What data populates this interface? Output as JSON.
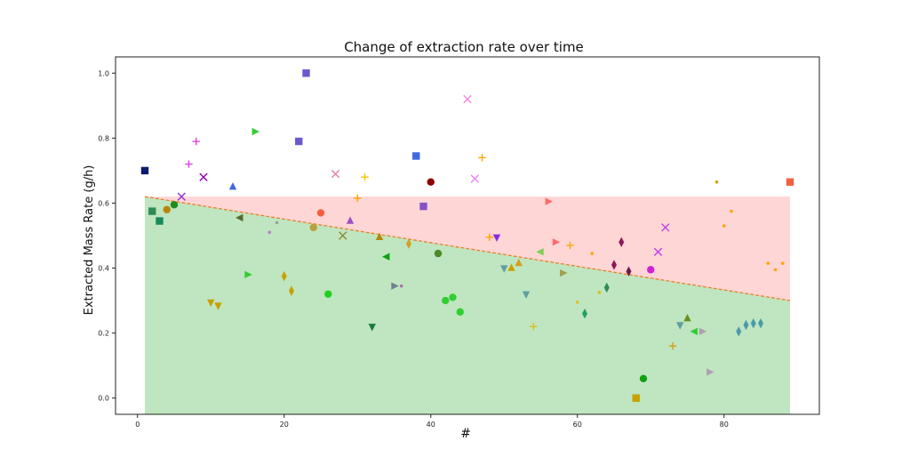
{
  "chart_data": {
    "type": "scatter",
    "title": "Change of extraction rate over time",
    "xlabel": "#",
    "ylabel": "Extracted Mass Rate (g/h)",
    "xlim": [
      -3,
      93
    ],
    "ylim": [
      -0.05,
      1.05
    ],
    "xticks": [
      0,
      20,
      40,
      60,
      80
    ],
    "yticks": [
      0.0,
      0.2,
      0.4,
      0.6,
      0.8,
      1.0
    ],
    "xtick_labels": [
      "0",
      "20",
      "40",
      "60",
      "80"
    ],
    "ytick_labels": [
      "0.0",
      "0.2",
      "0.4",
      "0.6",
      "0.8",
      "1.0"
    ],
    "grid": false,
    "legend": "none",
    "threshold_line": {
      "x": [
        1,
        89
      ],
      "y": [
        0.62,
        0.3
      ],
      "color": "#e8812a",
      "style": "dashed"
    },
    "regions": {
      "upper_band_top": 0.62,
      "upper_color": "#ffd6d6",
      "lower_color": "#bfe6c0"
    },
    "points": [
      {
        "x": 1,
        "y": 0.7,
        "marker": "square",
        "color": "#0b1a6e"
      },
      {
        "x": 2,
        "y": 0.575,
        "marker": "square",
        "color": "#2e8b57"
      },
      {
        "x": 3,
        "y": 0.545,
        "marker": "square",
        "color": "#178a5c"
      },
      {
        "x": 4,
        "y": 0.58,
        "marker": "circle",
        "color": "#b8860b"
      },
      {
        "x": 5,
        "y": 0.595,
        "marker": "circle",
        "color": "#228b22"
      },
      {
        "x": 6,
        "y": 0.62,
        "marker": "x",
        "color": "#9b30d0"
      },
      {
        "x": 7,
        "y": 0.72,
        "marker": "plus",
        "color": "#e040e0"
      },
      {
        "x": 8,
        "y": 0.79,
        "marker": "plus",
        "color": "#e040e0"
      },
      {
        "x": 9,
        "y": 0.68,
        "marker": "x",
        "color": "#8b00b0"
      },
      {
        "x": 10,
        "y": 0.295,
        "marker": "triangle-down",
        "color": "#c8a000"
      },
      {
        "x": 11,
        "y": 0.285,
        "marker": "triangle-down",
        "color": "#c8a000"
      },
      {
        "x": 13,
        "y": 0.65,
        "marker": "triangle-up",
        "color": "#4169e1"
      },
      {
        "x": 14,
        "y": 0.555,
        "marker": "triangle-left",
        "color": "#556b2f"
      },
      {
        "x": 15,
        "y": 0.38,
        "marker": "triangle-right",
        "color": "#32cd32"
      },
      {
        "x": 16,
        "y": 0.82,
        "marker": "triangle-right",
        "color": "#32cd32"
      },
      {
        "x": 18,
        "y": 0.51,
        "marker": "dot",
        "color": "#c080c0"
      },
      {
        "x": 19,
        "y": 0.54,
        "marker": "dot",
        "color": "#a0a0a0"
      },
      {
        "x": 20,
        "y": 0.375,
        "marker": "diamond",
        "color": "#c8a000"
      },
      {
        "x": 21,
        "y": 0.33,
        "marker": "diamond",
        "color": "#c8a000"
      },
      {
        "x": 22,
        "y": 0.79,
        "marker": "square",
        "color": "#6a5acd"
      },
      {
        "x": 23,
        "y": 1.0,
        "marker": "square",
        "color": "#6a5acd"
      },
      {
        "x": 24,
        "y": 0.525,
        "marker": "circle",
        "color": "#b8a040"
      },
      {
        "x": 25,
        "y": 0.57,
        "marker": "circle",
        "color": "#f06040"
      },
      {
        "x": 26,
        "y": 0.32,
        "marker": "circle",
        "color": "#20d020"
      },
      {
        "x": 27,
        "y": 0.69,
        "marker": "x",
        "color": "#e080a0"
      },
      {
        "x": 28,
        "y": 0.5,
        "marker": "x",
        "color": "#8b8b3a"
      },
      {
        "x": 29,
        "y": 0.545,
        "marker": "triangle-up",
        "color": "#9b50c8"
      },
      {
        "x": 30,
        "y": 0.615,
        "marker": "plus",
        "color": "#ffa500"
      },
      {
        "x": 31,
        "y": 0.68,
        "marker": "plus",
        "color": "#ffc000"
      },
      {
        "x": 32,
        "y": 0.22,
        "marker": "triangle-down",
        "color": "#1a7a3a"
      },
      {
        "x": 33,
        "y": 0.495,
        "marker": "triangle-up",
        "color": "#b8860b"
      },
      {
        "x": 34,
        "y": 0.435,
        "marker": "triangle-left",
        "color": "#10a010"
      },
      {
        "x": 35,
        "y": 0.345,
        "marker": "triangle-right",
        "color": "#708090"
      },
      {
        "x": 36,
        "y": 0.345,
        "marker": "dot",
        "color": "#b070b0"
      },
      {
        "x": 37,
        "y": 0.475,
        "marker": "diamond",
        "color": "#d4a020"
      },
      {
        "x": 38,
        "y": 0.745,
        "marker": "square",
        "color": "#4169e1"
      },
      {
        "x": 39,
        "y": 0.59,
        "marker": "square",
        "color": "#8a50c8"
      },
      {
        "x": 40,
        "y": 0.665,
        "marker": "circle",
        "color": "#8b0000"
      },
      {
        "x": 41,
        "y": 0.445,
        "marker": "circle",
        "color": "#4a8a2a"
      },
      {
        "x": 42,
        "y": 0.3,
        "marker": "circle",
        "color": "#32cd32"
      },
      {
        "x": 43,
        "y": 0.31,
        "marker": "circle",
        "color": "#32cd32"
      },
      {
        "x": 44,
        "y": 0.265,
        "marker": "circle",
        "color": "#32cd32"
      },
      {
        "x": 45,
        "y": 0.92,
        "marker": "x",
        "color": "#ee82ee"
      },
      {
        "x": 46,
        "y": 0.675,
        "marker": "x",
        "color": "#ee82ee"
      },
      {
        "x": 47,
        "y": 0.74,
        "marker": "plus",
        "color": "#ffa500"
      },
      {
        "x": 48,
        "y": 0.495,
        "marker": "plus",
        "color": "#ffa500"
      },
      {
        "x": 49,
        "y": 0.495,
        "marker": "triangle-down",
        "color": "#8a2be2"
      },
      {
        "x": 50,
        "y": 0.4,
        "marker": "triangle-down",
        "color": "#5f9ea0"
      },
      {
        "x": 51,
        "y": 0.4,
        "marker": "triangle-up",
        "color": "#c8a000"
      },
      {
        "x": 52,
        "y": 0.415,
        "marker": "triangle-up",
        "color": "#d4a020"
      },
      {
        "x": 53,
        "y": 0.32,
        "marker": "triangle-down",
        "color": "#5f9ea0"
      },
      {
        "x": 54,
        "y": 0.22,
        "marker": "plus",
        "color": "#d4c020"
      },
      {
        "x": 55,
        "y": 0.45,
        "marker": "triangle-left",
        "color": "#7fd050"
      },
      {
        "x": 56,
        "y": 0.605,
        "marker": "triangle-right",
        "color": "#ff6a6a"
      },
      {
        "x": 57,
        "y": 0.48,
        "marker": "triangle-right",
        "color": "#ff6a6a"
      },
      {
        "x": 58,
        "y": 0.385,
        "marker": "triangle-right",
        "color": "#a0a050"
      },
      {
        "x": 59,
        "y": 0.47,
        "marker": "plus",
        "color": "#ffa500"
      },
      {
        "x": 60,
        "y": 0.295,
        "marker": "dot",
        "color": "#e0c020"
      },
      {
        "x": 61,
        "y": 0.26,
        "marker": "diamond",
        "color": "#20a060"
      },
      {
        "x": 62,
        "y": 0.445,
        "marker": "dot",
        "color": "#ffa500"
      },
      {
        "x": 63,
        "y": 0.325,
        "marker": "dot",
        "color": "#d4c020"
      },
      {
        "x": 64,
        "y": 0.34,
        "marker": "diamond",
        "color": "#2e8b57"
      },
      {
        "x": 65,
        "y": 0.41,
        "marker": "diamond",
        "color": "#8b1a5a"
      },
      {
        "x": 66,
        "y": 0.48,
        "marker": "diamond",
        "color": "#8b1a5a"
      },
      {
        "x": 67,
        "y": 0.39,
        "marker": "diamond",
        "color": "#6b1a4a"
      },
      {
        "x": 68,
        "y": 0.0,
        "marker": "square",
        "color": "#c8a000"
      },
      {
        "x": 69,
        "y": 0.06,
        "marker": "circle",
        "color": "#10a010"
      },
      {
        "x": 70,
        "y": 0.395,
        "marker": "circle",
        "color": "#d020d0"
      },
      {
        "x": 71,
        "y": 0.45,
        "marker": "x",
        "color": "#c040e0"
      },
      {
        "x": 72,
        "y": 0.525,
        "marker": "x",
        "color": "#c040e0"
      },
      {
        "x": 73,
        "y": 0.16,
        "marker": "plus",
        "color": "#d4a020"
      },
      {
        "x": 74,
        "y": 0.225,
        "marker": "triangle-down",
        "color": "#5f9ea0"
      },
      {
        "x": 75,
        "y": 0.245,
        "marker": "triangle-up",
        "color": "#6b8e23"
      },
      {
        "x": 76,
        "y": 0.205,
        "marker": "triangle-left",
        "color": "#32cd32"
      },
      {
        "x": 77,
        "y": 0.205,
        "marker": "triangle-right",
        "color": "#b0a0b0"
      },
      {
        "x": 78,
        "y": 0.08,
        "marker": "triangle-right",
        "color": "#b0a0b0"
      },
      {
        "x": 79,
        "y": 0.665,
        "marker": "dot",
        "color": "#d4a020"
      },
      {
        "x": 80,
        "y": 0.53,
        "marker": "dot",
        "color": "#ffa500"
      },
      {
        "x": 81,
        "y": 0.575,
        "marker": "dot",
        "color": "#ffa500"
      },
      {
        "x": 82,
        "y": 0.205,
        "marker": "diamond",
        "color": "#4a9aaa"
      },
      {
        "x": 83,
        "y": 0.225,
        "marker": "diamond",
        "color": "#4a9aaa"
      },
      {
        "x": 84,
        "y": 0.23,
        "marker": "diamond",
        "color": "#4a9aaa"
      },
      {
        "x": 85,
        "y": 0.23,
        "marker": "diamond",
        "color": "#4a9aaa"
      },
      {
        "x": 86,
        "y": 0.415,
        "marker": "dot",
        "color": "#ffa500"
      },
      {
        "x": 87,
        "y": 0.395,
        "marker": "dot",
        "color": "#ffa500"
      },
      {
        "x": 88,
        "y": 0.415,
        "marker": "dot",
        "color": "#ffa500"
      },
      {
        "x": 89,
        "y": 0.665,
        "marker": "square",
        "color": "#f06040"
      }
    ]
  }
}
